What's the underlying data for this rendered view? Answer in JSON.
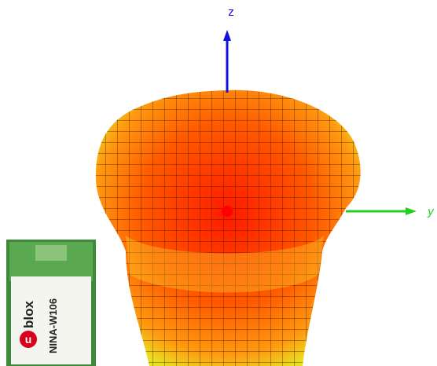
{
  "axes": {
    "z": "z",
    "y": "y"
  },
  "module": {
    "logo_letter": "u",
    "brand": "blox",
    "model": "NINA-W106"
  }
}
